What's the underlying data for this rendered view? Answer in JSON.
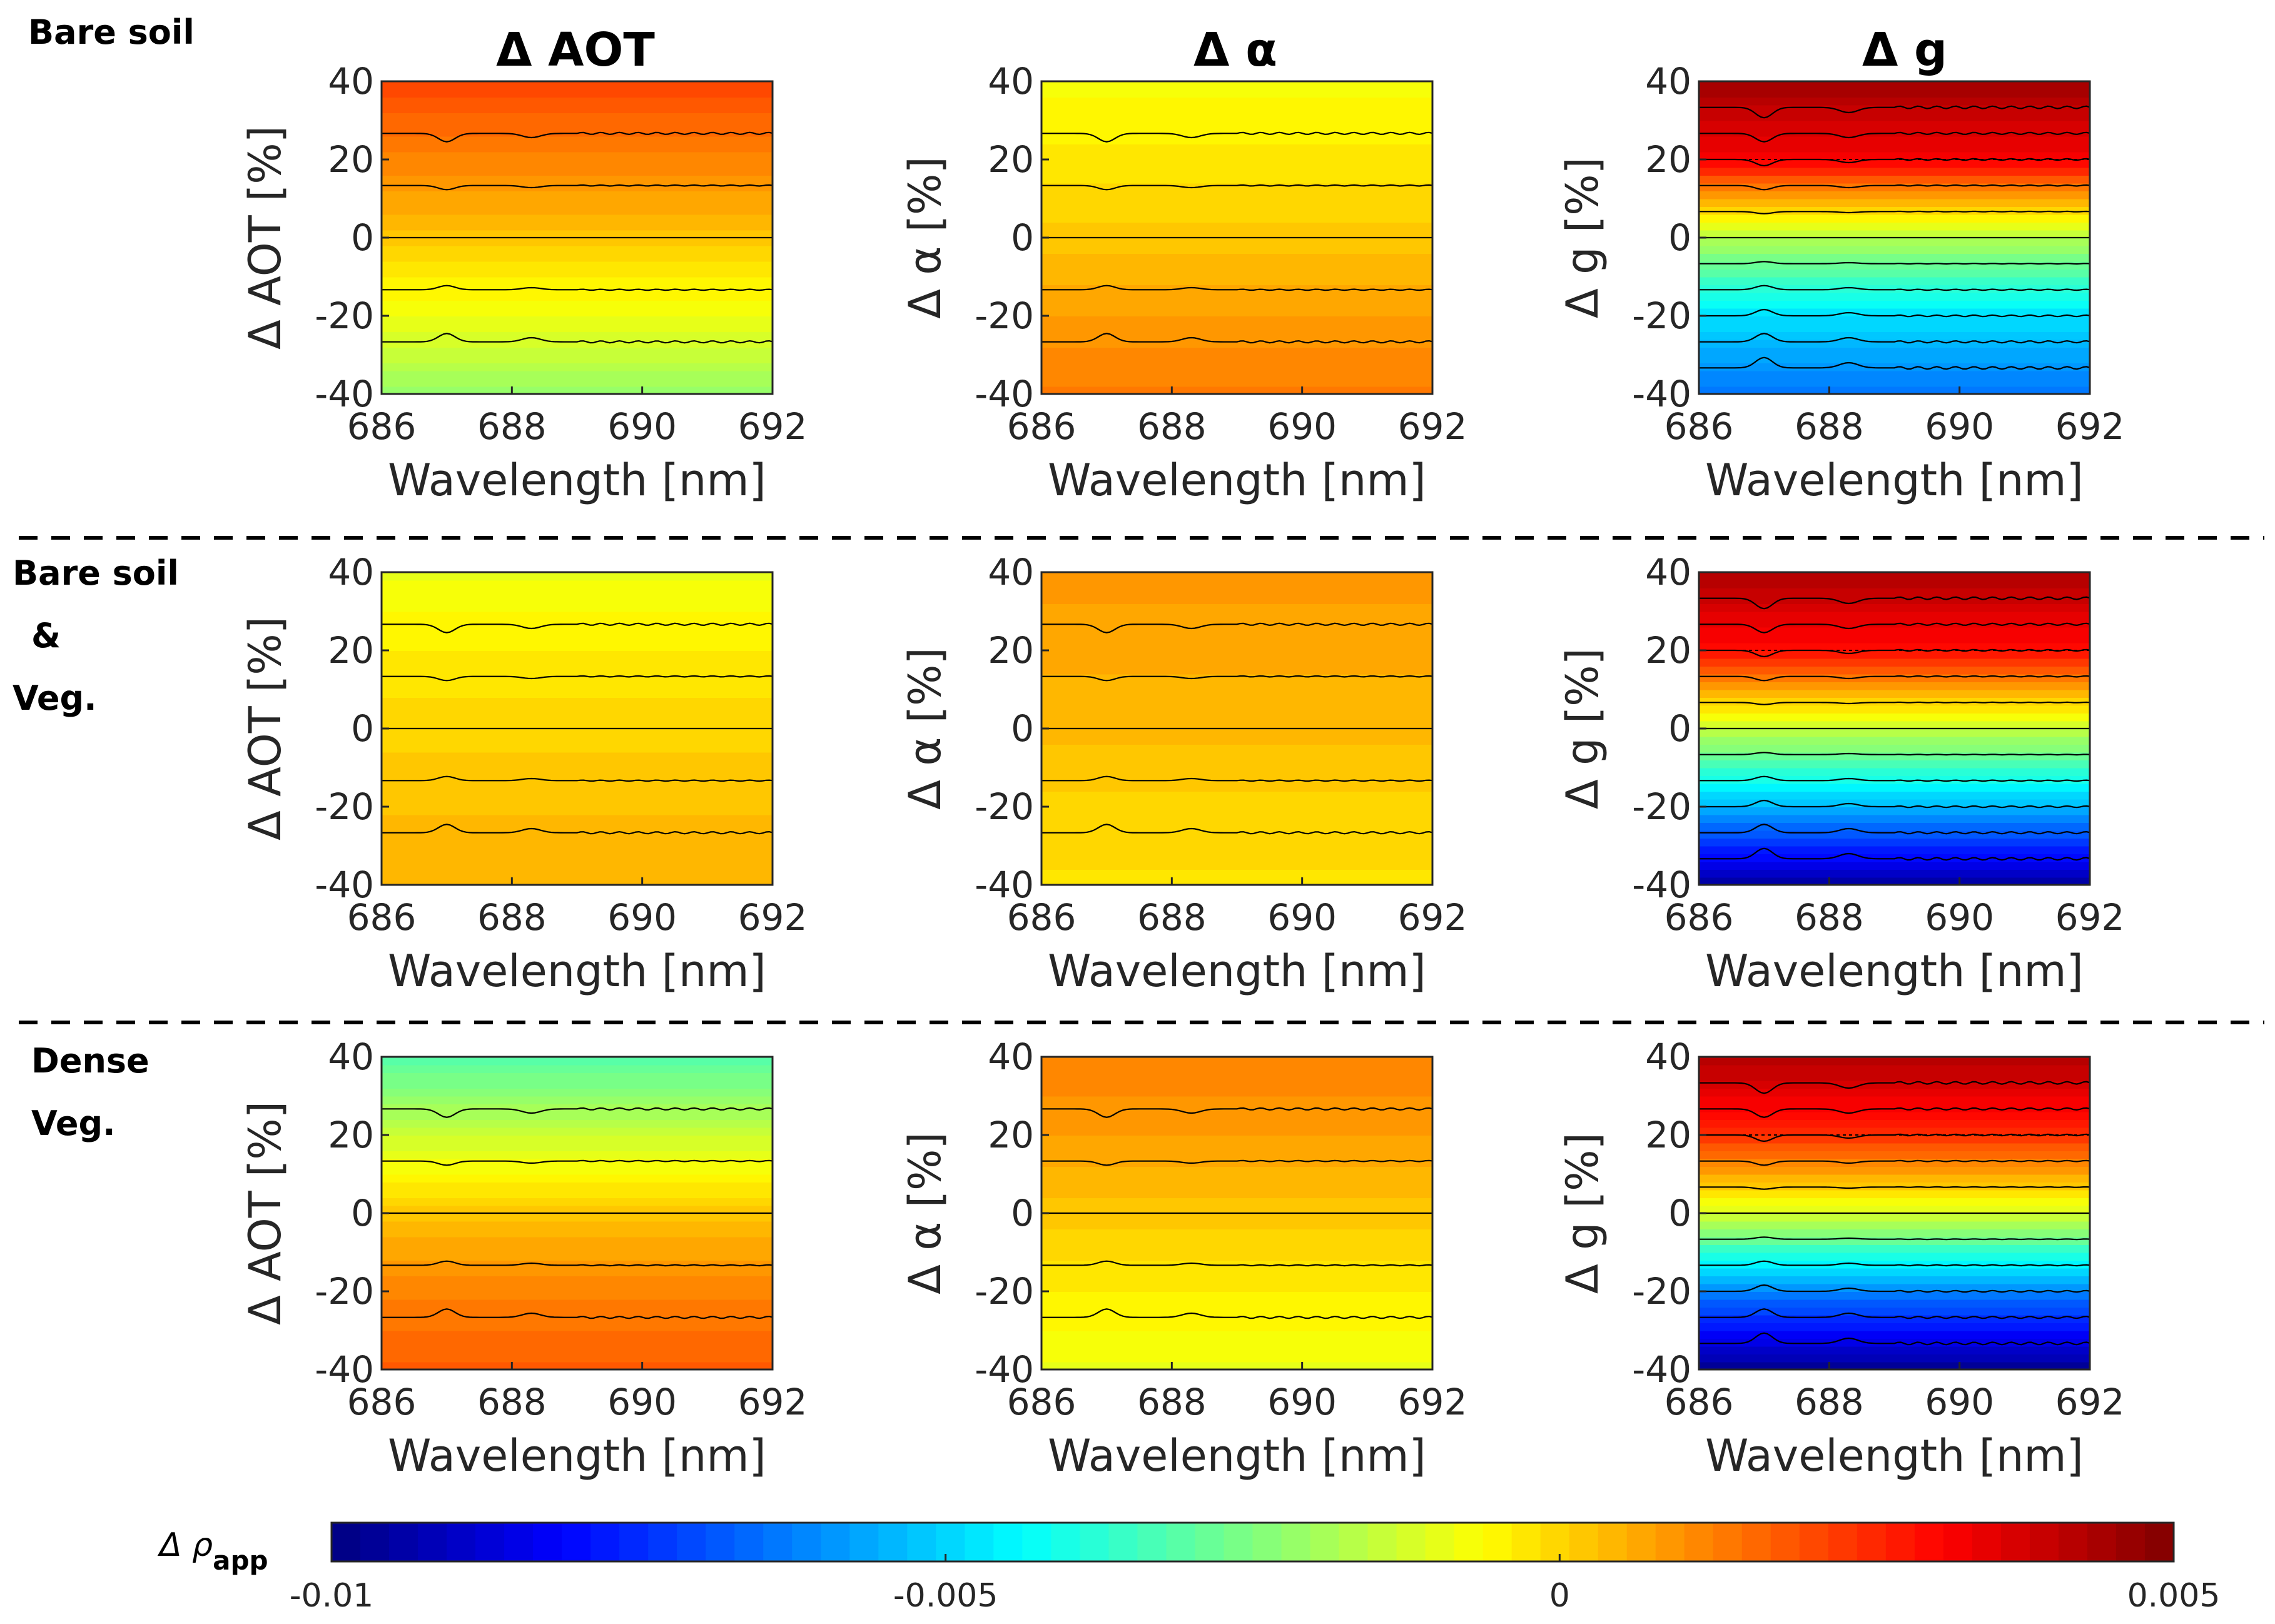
{
  "figure": {
    "row_labels": [
      [
        "Bare soil"
      ],
      [
        "Bare soil",
        "&",
        "Veg."
      ],
      [
        "Dense",
        "Veg."
      ]
    ],
    "column_titles": [
      "Δ AOT",
      "Δ α",
      "Δ g"
    ],
    "colorbar": {
      "symbol": "Δ ρ",
      "subscript": "app",
      "min": -0.01,
      "max": 0.005,
      "ticks": [
        -0.01,
        -0.005,
        0,
        0.005
      ],
      "tick_labels": [
        "-0.01",
        "-0.005",
        "0",
        "0.005"
      ],
      "levels": 64,
      "colormap": "jet"
    }
  },
  "chart_data": [
    {
      "type": "heatmap",
      "row": "Bare soil",
      "parameter": "AOT",
      "xlabel": "Wavelength [nm]",
      "ylabel": "Δ AOT [%]",
      "xlim": [
        686,
        692
      ],
      "ylim": [
        -40,
        40
      ],
      "xticks": [
        "686",
        "688",
        "690",
        "692"
      ],
      "yticks": [
        "40",
        "20",
        "0",
        "-20",
        "-40"
      ],
      "y_rows": [
        -40,
        -20,
        0,
        20,
        40
      ],
      "delta_rho_by_row": [
        -0.0021,
        -0.0009,
        0.0002,
        0.0012,
        0.0021
      ],
      "spectral_feature_nm": [
        687,
        688.3
      ]
    },
    {
      "type": "heatmap",
      "row": "Bare soil",
      "parameter": "alpha",
      "xlabel": "Wavelength [nm]",
      "ylabel": "Δ α [%]",
      "xlim": [
        686,
        692
      ],
      "ylim": [
        -40,
        40
      ],
      "xticks": [
        "686",
        "688",
        "690",
        "692"
      ],
      "yticks": [
        "40",
        "20",
        "0",
        "-20",
        "-40"
      ],
      "y_rows": [
        -40,
        -20,
        0,
        20,
        40
      ],
      "delta_rho_by_row": [
        0.0013,
        0.0008,
        0.0002,
        -0.0003,
        -0.0007
      ],
      "spectral_feature_nm": [
        687,
        688.3
      ]
    },
    {
      "type": "heatmap",
      "row": "Bare soil",
      "parameter": "g",
      "xlabel": "Wavelength [nm]",
      "ylabel": "Δ g [%]",
      "xlim": [
        686,
        692
      ],
      "ylim": [
        -40,
        40
      ],
      "xticks": [
        "686",
        "688",
        "690",
        "692"
      ],
      "yticks": [
        "40",
        "20",
        "0",
        "-20",
        "-40"
      ],
      "y_rows": [
        -40,
        -20,
        0,
        20,
        40
      ],
      "delta_rho_by_row": [
        -0.0065,
        -0.0048,
        -0.0018,
        0.0032,
        0.0045
      ],
      "spectral_feature_nm": [
        687,
        688.3
      ]
    },
    {
      "type": "heatmap",
      "row": "Bare soil & Veg.",
      "parameter": "AOT",
      "xlabel": "Wavelength [nm]",
      "ylabel": "Δ AOT [%]",
      "xlim": [
        686,
        692
      ],
      "ylim": [
        -40,
        40
      ],
      "xticks": [
        "686",
        "688",
        "690",
        "692"
      ],
      "yticks": [
        "40",
        "20",
        "0",
        "-20",
        "-40"
      ],
      "y_rows": [
        -40,
        -20,
        0,
        20,
        40
      ],
      "delta_rho_by_row": [
        0.0005,
        0.0003,
        0.0,
        -0.0004,
        -0.0009
      ],
      "spectral_feature_nm": [
        687,
        688.3
      ]
    },
    {
      "type": "heatmap",
      "row": "Bare soil & Veg.",
      "parameter": "alpha",
      "xlabel": "Wavelength [nm]",
      "ylabel": "Δ α [%]",
      "xlim": [
        686,
        692
      ],
      "ylim": [
        -40,
        40
      ],
      "xticks": [
        "686",
        "688",
        "690",
        "692"
      ],
      "yticks": [
        "40",
        "20",
        "0",
        "-20",
        "-40"
      ],
      "y_rows": [
        -40,
        -20,
        0,
        20,
        40
      ],
      "delta_rho_by_row": [
        -0.0002,
        0.0,
        0.0004,
        0.0006,
        0.0009
      ],
      "spectral_feature_nm": [
        687,
        688.3
      ]
    },
    {
      "type": "heatmap",
      "row": "Bare soil & Veg.",
      "parameter": "g",
      "xlabel": "Wavelength [nm]",
      "ylabel": "Δ g [%]",
      "xlim": [
        686,
        692
      ],
      "ylim": [
        -40,
        40
      ],
      "xticks": [
        "686",
        "688",
        "690",
        "692"
      ],
      "yticks": [
        "40",
        "20",
        "0",
        "-20",
        "-40"
      ],
      "y_rows": [
        -40,
        -20,
        0,
        20,
        40
      ],
      "delta_rho_by_row": [
        -0.0095,
        -0.0055,
        -0.0015,
        0.003,
        0.0043
      ],
      "spectral_feature_nm": [
        687,
        688.3
      ]
    },
    {
      "type": "heatmap",
      "row": "Dense Veg.",
      "parameter": "AOT",
      "xlabel": "Wavelength [nm]",
      "ylabel": "Δ AOT [%]",
      "xlim": [
        686,
        692
      ],
      "ylim": [
        -40,
        40
      ],
      "xticks": [
        "686",
        "688",
        "690",
        "692"
      ],
      "yticks": [
        "40",
        "20",
        "0",
        "-20",
        "-40"
      ],
      "y_rows": [
        -40,
        -20,
        0,
        20,
        40
      ],
      "delta_rho_by_row": [
        0.0018,
        0.0012,
        0.0002,
        -0.0014,
        -0.0031
      ],
      "spectral_feature_nm": [
        687,
        688.3
      ]
    },
    {
      "type": "heatmap",
      "row": "Dense Veg.",
      "parameter": "alpha",
      "xlabel": "Wavelength [nm]",
      "ylabel": "Δ α [%]",
      "xlim": [
        686,
        692
      ],
      "ylim": [
        -40,
        40
      ],
      "xticks": [
        "686",
        "688",
        "690",
        "692"
      ],
      "yticks": [
        "40",
        "20",
        "0",
        "-20",
        "-40"
      ],
      "y_rows": [
        -40,
        -20,
        0,
        20,
        40
      ],
      "delta_rho_by_row": [
        -0.0009,
        -0.0004,
        0.0002,
        0.0008,
        0.0012
      ],
      "spectral_feature_nm": [
        687,
        688.3
      ]
    },
    {
      "type": "heatmap",
      "row": "Dense Veg.",
      "parameter": "g",
      "xlabel": "Wavelength [nm]",
      "ylabel": "Δ g [%]",
      "xlim": [
        686,
        692
      ],
      "ylim": [
        -40,
        40
      ],
      "xticks": [
        "686",
        "688",
        "690",
        "692"
      ],
      "yticks": [
        "40",
        "20",
        "0",
        "-20",
        "-40"
      ],
      "y_rows": [
        -40,
        -20,
        0,
        20,
        40
      ],
      "delta_rho_by_row": [
        -0.0098,
        -0.0062,
        -0.0012,
        0.0025,
        0.0043
      ],
      "spectral_feature_nm": [
        687,
        688.3
      ]
    }
  ]
}
